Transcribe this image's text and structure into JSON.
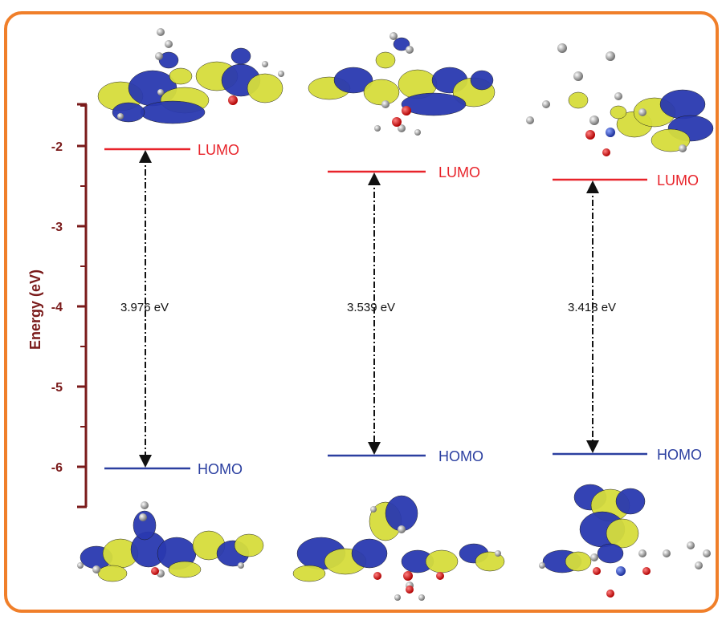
{
  "colors": {
    "frame": "#f07f2a",
    "axis": "#7a1a1a",
    "lumo": "#e8232a",
    "homo": "#2b3fa0",
    "orbital_blue": "#2a39b0",
    "orbital_yellow": "#d6dd3c",
    "arrow": "#111111"
  },
  "chart_data": {
    "type": "energy-level diagram",
    "ylabel": "Energy (eV)",
    "yticks": [
      -2,
      -3,
      -4,
      -5,
      -6
    ],
    "ylim": [
      -6.5,
      -1.5
    ],
    "grid": false,
    "lumo_label": "LUMO",
    "homo_label": "HOMO",
    "systems": [
      {
        "lumo": -2.04,
        "homo": -6.02,
        "gap_label": "3.976 eV"
      },
      {
        "lumo": -2.32,
        "homo": -5.86,
        "gap_label": "3.539 eV"
      },
      {
        "lumo": -2.42,
        "homo": -5.84,
        "gap_label": "3.413 eV"
      }
    ]
  }
}
